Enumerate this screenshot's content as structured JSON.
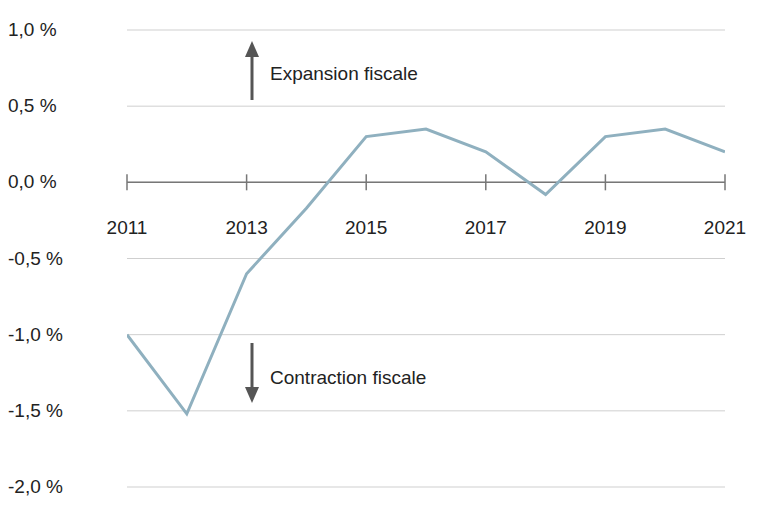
{
  "chart_data": {
    "type": "line",
    "x": [
      2011,
      2012,
      2013,
      2014,
      2015,
      2016,
      2017,
      2018,
      2019,
      2020,
      2021
    ],
    "values": [
      -1.0,
      -1.52,
      -0.6,
      -0.17,
      0.3,
      0.35,
      0.2,
      -0.08,
      0.3,
      0.35,
      0.2
    ],
    "color": "#8fb0bf",
    "xlim": [
      2011,
      2021
    ],
    "xticks": [
      2011,
      2013,
      2015,
      2017,
      2019,
      2021
    ],
    "ylim": [
      -2,
      1
    ],
    "yticks": [
      {
        "value": -2,
        "label": "-2,0 %"
      },
      {
        "value": -1.5,
        "label": "-1,5 %"
      },
      {
        "value": -1,
        "label": "-1,0 %"
      },
      {
        "value": -0.5,
        "label": "-0,5 %"
      },
      {
        "value": 0,
        "label": "0,0 %"
      },
      {
        "value": 0.5,
        "label": "0,5 %"
      },
      {
        "value": 1,
        "label": "1,0 %"
      }
    ],
    "grid": true,
    "annotations": [
      "Expansion fiscale",
      "Contraction fiscale"
    ]
  }
}
